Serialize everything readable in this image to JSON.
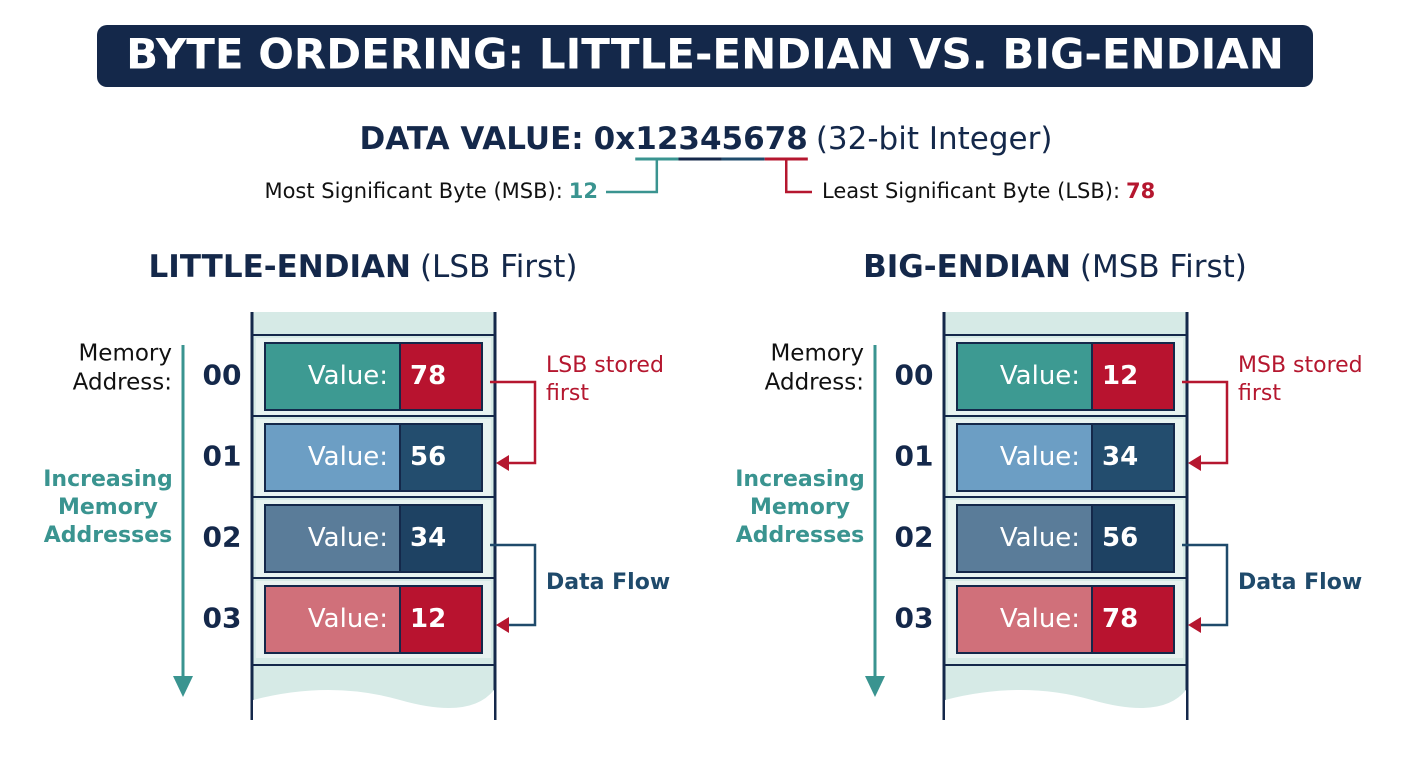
{
  "title": "BYTE ORDERING: LITTLE-ENDIAN VS. BIG-ENDIAN",
  "data_value": {
    "label": "DATA VALUE:",
    "prefix": "0x",
    "bytes": [
      "12",
      "34",
      "56",
      "78"
    ],
    "note": "(32-bit Integer)"
  },
  "msb": {
    "label": "Most Significant Byte (MSB):",
    "value": "12"
  },
  "lsb": {
    "label": "Least Significant Byte (LSB):",
    "value": "78"
  },
  "panels": [
    {
      "title": "LITTLE-ENDIAN",
      "subtitle": "(LSB First)",
      "address_label": [
        "Memory",
        "Address:"
      ],
      "direction_label": [
        "Increasing",
        "Memory",
        "Addresses"
      ],
      "rows": [
        {
          "address": "00",
          "label": "Value:",
          "value": "78"
        },
        {
          "address": "01",
          "label": "Value:",
          "value": "56"
        },
        {
          "address": "02",
          "label": "Value:",
          "value": "34"
        },
        {
          "address": "03",
          "label": "Value:",
          "value": "12"
        }
      ],
      "note": [
        "LSB stored",
        "first"
      ],
      "flow": "Data Flow"
    },
    {
      "title": "BIG-ENDIAN",
      "subtitle": "(MSB First)",
      "address_label": [
        "Memory",
        "Address:"
      ],
      "direction_label": [
        "Increasing",
        "Memory",
        "Addresses"
      ],
      "rows": [
        {
          "address": "00",
          "label": "Value:",
          "value": "12"
        },
        {
          "address": "01",
          "label": "Value:",
          "value": "34"
        },
        {
          "address": "02",
          "label": "Value:",
          "value": "56"
        },
        {
          "address": "03",
          "label": "Value:",
          "value": "78"
        }
      ],
      "note": [
        "MSB stored",
        "first"
      ],
      "flow": "Data Flow"
    }
  ]
}
